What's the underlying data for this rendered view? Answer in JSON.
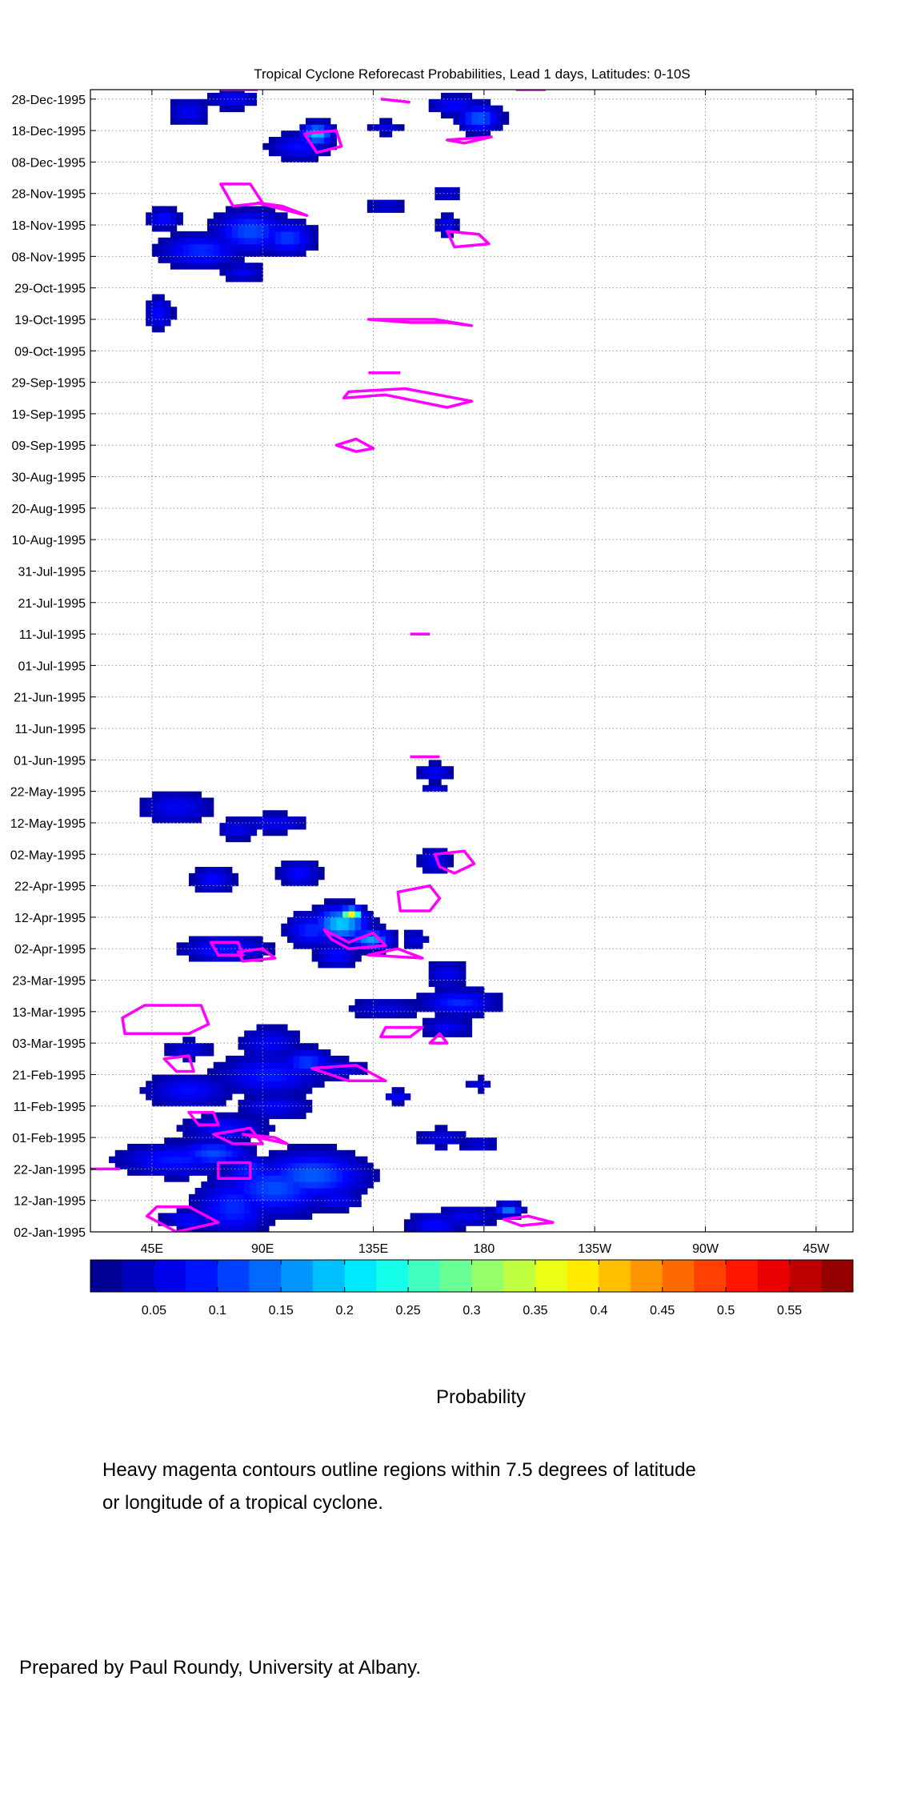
{
  "chart_data": {
    "type": "heatmap",
    "title": "Tropical Cyclone Reforecast Probabilities, Lead 1 days, Latitudes: 0-10S",
    "xlabel": "",
    "ylabel": "",
    "colorbar_label": "Probability",
    "x_ticks": [
      {
        "lon": 45,
        "label": "45E"
      },
      {
        "lon": 90,
        "label": "90E"
      },
      {
        "lon": 135,
        "label": "135E"
      },
      {
        "lon": 180,
        "label": "180"
      },
      {
        "lon": 225,
        "label": "135W"
      },
      {
        "lon": 270,
        "label": "90W"
      },
      {
        "lon": 315,
        "label": "45W"
      }
    ],
    "xlim": [
      20,
      330
    ],
    "y_ticks": [
      {
        "day": 0,
        "label": "02-Jan-1995"
      },
      {
        "day": 10,
        "label": "12-Jan-1995"
      },
      {
        "day": 20,
        "label": "22-Jan-1995"
      },
      {
        "day": 30,
        "label": "01-Feb-1995"
      },
      {
        "day": 40,
        "label": "11-Feb-1995"
      },
      {
        "day": 50,
        "label": "21-Feb-1995"
      },
      {
        "day": 60,
        "label": "03-Mar-1995"
      },
      {
        "day": 70,
        "label": "13-Mar-1995"
      },
      {
        "day": 80,
        "label": "23-Mar-1995"
      },
      {
        "day": 90,
        "label": "02-Apr-1995"
      },
      {
        "day": 100,
        "label": "12-Apr-1995"
      },
      {
        "day": 110,
        "label": "22-Apr-1995"
      },
      {
        "day": 120,
        "label": "02-May-1995"
      },
      {
        "day": 130,
        "label": "12-May-1995"
      },
      {
        "day": 140,
        "label": "22-May-1995"
      },
      {
        "day": 150,
        "label": "01-Jun-1995"
      },
      {
        "day": 160,
        "label": "11-Jun-1995"
      },
      {
        "day": 170,
        "label": "21-Jun-1995"
      },
      {
        "day": 180,
        "label": "01-Jul-1995"
      },
      {
        "day": 190,
        "label": "11-Jul-1995"
      },
      {
        "day": 200,
        "label": "21-Jul-1995"
      },
      {
        "day": 210,
        "label": "31-Jul-1995"
      },
      {
        "day": 220,
        "label": "10-Aug-1995"
      },
      {
        "day": 230,
        "label": "20-Aug-1995"
      },
      {
        "day": 240,
        "label": "30-Aug-1995"
      },
      {
        "day": 250,
        "label": "09-Sep-1995"
      },
      {
        "day": 260,
        "label": "19-Sep-1995"
      },
      {
        "day": 270,
        "label": "29-Sep-1995"
      },
      {
        "day": 280,
        "label": "09-Oct-1995"
      },
      {
        "day": 290,
        "label": "19-Oct-1995"
      },
      {
        "day": 300,
        "label": "29-Oct-1995"
      },
      {
        "day": 310,
        "label": "08-Nov-1995"
      },
      {
        "day": 320,
        "label": "18-Nov-1995"
      },
      {
        "day": 330,
        "label": "28-Nov-1995"
      },
      {
        "day": 340,
        "label": "08-Dec-1995"
      },
      {
        "day": 350,
        "label": "18-Dec-1995"
      },
      {
        "day": 360,
        "label": "28-Dec-1995"
      }
    ],
    "ylim": [
      0,
      363
    ],
    "colorbar": {
      "range": [
        0,
        0.6
      ],
      "ticks": [
        0.05,
        0.1,
        0.15,
        0.2,
        0.25,
        0.3,
        0.35,
        0.4,
        0.45,
        0.5,
        0.55
      ],
      "tick_labels": [
        "0.05",
        "0.1",
        "0.15",
        "0.2",
        "0.25",
        "0.3",
        "0.35",
        "0.4",
        "0.45",
        "0.5",
        "0.55"
      ],
      "colormap": "jet",
      "levels": 24
    },
    "grid": true,
    "probability_blobs": [
      {
        "lon": 60,
        "day": 4,
        "rl": 10,
        "rd": 3,
        "v": 0.08
      },
      {
        "lon": 78,
        "day": 8,
        "rl": 14,
        "rd": 9,
        "v": 0.1
      },
      {
        "lon": 95,
        "day": 14,
        "rl": 20,
        "rd": 8,
        "v": 0.12
      },
      {
        "lon": 110,
        "day": 18,
        "rl": 20,
        "rd": 7,
        "v": 0.13
      },
      {
        "lon": 120,
        "day": 10,
        "rl": 10,
        "rd": 3,
        "v": 0.07
      },
      {
        "lon": 55,
        "day": 23,
        "rl": 22,
        "rd": 5,
        "v": 0.09
      },
      {
        "lon": 70,
        "day": 25,
        "rl": 14,
        "rd": 4,
        "v": 0.12
      },
      {
        "lon": 85,
        "day": 20,
        "rl": 10,
        "rd": 4,
        "v": 0.1
      },
      {
        "lon": 160,
        "day": 2,
        "rl": 10,
        "rd": 4,
        "v": 0.08
      },
      {
        "lon": 173,
        "day": 5,
        "rl": 12,
        "rd": 3,
        "v": 0.07
      },
      {
        "lon": 190,
        "day": 7,
        "rl": 5,
        "rd": 2,
        "v": 0.15
      },
      {
        "lon": 163,
        "day": 30,
        "rl": 10,
        "rd": 3,
        "v": 0.06
      },
      {
        "lon": 178,
        "day": 28,
        "rl": 8,
        "rd": 2,
        "v": 0.06
      },
      {
        "lon": 75,
        "day": 33,
        "rl": 16,
        "rd": 4,
        "v": 0.08
      },
      {
        "lon": 95,
        "day": 40,
        "rl": 14,
        "rd": 4,
        "v": 0.07
      },
      {
        "lon": 60,
        "day": 45,
        "rl": 16,
        "rd": 5,
        "v": 0.08
      },
      {
        "lon": 93,
        "day": 50,
        "rl": 20,
        "rd": 6,
        "v": 0.09
      },
      {
        "lon": 108,
        "day": 54,
        "rl": 10,
        "rd": 4,
        "v": 0.11
      },
      {
        "lon": 120,
        "day": 52,
        "rl": 12,
        "rd": 3,
        "v": 0.07
      },
      {
        "lon": 93,
        "day": 60,
        "rl": 12,
        "rd": 5,
        "v": 0.07
      },
      {
        "lon": 60,
        "day": 58,
        "rl": 10,
        "rd": 3,
        "v": 0.06
      },
      {
        "lon": 145,
        "day": 43,
        "rl": 5,
        "rd": 2,
        "v": 0.08
      },
      {
        "lon": 178,
        "day": 47,
        "rl": 5,
        "rd": 2,
        "v": 0.06
      },
      {
        "lon": 165,
        "day": 65,
        "rl": 10,
        "rd": 3,
        "v": 0.07
      },
      {
        "lon": 170,
        "day": 73,
        "rl": 14,
        "rd": 4,
        "v": 0.1
      },
      {
        "lon": 140,
        "day": 71,
        "rl": 14,
        "rd": 3,
        "v": 0.06
      },
      {
        "lon": 75,
        "day": 90,
        "rl": 16,
        "rd": 4,
        "v": 0.09
      },
      {
        "lon": 110,
        "day": 96,
        "rl": 10,
        "rd": 5,
        "v": 0.1
      },
      {
        "lon": 122,
        "day": 98,
        "rl": 10,
        "rd": 5,
        "v": 0.2
      },
      {
        "lon": 126,
        "day": 101,
        "rl": 4,
        "rd": 2,
        "v": 0.38
      },
      {
        "lon": 134,
        "day": 93,
        "rl": 8,
        "rd": 3,
        "v": 0.17
      },
      {
        "lon": 120,
        "day": 88,
        "rl": 8,
        "rd": 4,
        "v": 0.08
      },
      {
        "lon": 165,
        "day": 82,
        "rl": 8,
        "rd": 4,
        "v": 0.07
      },
      {
        "lon": 152,
        "day": 93,
        "rl": 5,
        "rd": 3,
        "v": 0.06
      },
      {
        "lon": 70,
        "day": 112,
        "rl": 8,
        "rd": 4,
        "v": 0.08
      },
      {
        "lon": 105,
        "day": 114,
        "rl": 8,
        "rd": 4,
        "v": 0.08
      },
      {
        "lon": 160,
        "day": 118,
        "rl": 6,
        "rd": 4,
        "v": 0.07
      },
      {
        "lon": 55,
        "day": 135,
        "rl": 14,
        "rd": 5,
        "v": 0.07
      },
      {
        "lon": 95,
        "day": 130,
        "rl": 12,
        "rd": 3,
        "v": 0.07
      },
      {
        "lon": 80,
        "day": 128,
        "rl": 8,
        "rd": 3,
        "v": 0.07
      },
      {
        "lon": 160,
        "day": 146,
        "rl": 7,
        "rd": 3,
        "v": 0.07
      },
      {
        "lon": 160,
        "day": 141,
        "rl": 5,
        "rd": 1,
        "v": 0.06
      },
      {
        "lon": 48,
        "day": 292,
        "rl": 5,
        "rd": 5,
        "v": 0.08
      },
      {
        "lon": 65,
        "day": 312,
        "rl": 16,
        "rd": 5,
        "v": 0.1
      },
      {
        "lon": 50,
        "day": 322,
        "rl": 6,
        "rd": 3,
        "v": 0.09
      },
      {
        "lon": 85,
        "day": 318,
        "rl": 14,
        "rd": 6,
        "v": 0.12
      },
      {
        "lon": 100,
        "day": 316,
        "rl": 10,
        "rd": 5,
        "v": 0.11
      },
      {
        "lon": 82,
        "day": 305,
        "rl": 8,
        "rd": 3,
        "v": 0.07
      },
      {
        "lon": 140,
        "day": 326,
        "rl": 8,
        "rd": 2,
        "v": 0.06
      },
      {
        "lon": 165,
        "day": 320,
        "rl": 4,
        "rd": 4,
        "v": 0.07
      },
      {
        "lon": 60,
        "day": 356,
        "rl": 8,
        "rd": 4,
        "v": 0.07
      },
      {
        "lon": 78,
        "day": 360,
        "rl": 10,
        "rd": 3,
        "v": 0.07
      },
      {
        "lon": 105,
        "day": 345,
        "rl": 12,
        "rd": 4,
        "v": 0.08
      },
      {
        "lon": 112,
        "day": 349,
        "rl": 6,
        "rd": 3,
        "v": 0.2
      },
      {
        "lon": 168,
        "day": 358,
        "rl": 10,
        "rd": 3,
        "v": 0.08
      },
      {
        "lon": 178,
        "day": 354,
        "rl": 8,
        "rd": 4,
        "v": 0.13
      },
      {
        "lon": 140,
        "day": 351,
        "rl": 6,
        "rd": 2,
        "v": 0.06
      },
      {
        "lon": 165,
        "day": 330,
        "rl": 6,
        "rd": 2,
        "v": 0.06
      }
    ],
    "cyclone_contours": [
      [
        [
          33,
          68
        ],
        [
          42,
          72
        ],
        [
          65,
          72
        ],
        [
          68,
          66
        ],
        [
          60,
          63
        ],
        [
          34,
          63
        ]
      ],
      [
        [
          50,
          55
        ],
        [
          60,
          56
        ],
        [
          62,
          51
        ],
        [
          55,
          51
        ]
      ],
      [
        [
          60,
          38
        ],
        [
          70,
          38
        ],
        [
          72,
          34
        ],
        [
          64,
          34
        ]
      ],
      [
        [
          110,
          52
        ],
        [
          125,
          48
        ],
        [
          140,
          48
        ],
        [
          128,
          53
        ]
      ],
      [
        [
          140,
          65
        ],
        [
          155,
          65
        ],
        [
          150,
          62
        ],
        [
          138,
          62
        ]
      ],
      [
        [
          158,
          60
        ],
        [
          165,
          60
        ],
        [
          162,
          63
        ]
      ],
      [
        [
          70,
          31
        ],
        [
          85,
          33
        ],
        [
          90,
          28
        ],
        [
          78,
          28
        ]
      ],
      [
        [
          82,
          31
        ],
        [
          95,
          30
        ],
        [
          100,
          28
        ]
      ],
      [
        [
          72,
          22
        ],
        [
          85,
          22
        ],
        [
          85,
          17
        ],
        [
          72,
          17
        ]
      ],
      [
        [
          43,
          5
        ],
        [
          55,
          0
        ],
        [
          72,
          3
        ],
        [
          60,
          8
        ],
        [
          47,
          8
        ]
      ],
      [
        [
          188,
          4
        ],
        [
          198,
          5
        ],
        [
          208,
          3
        ],
        [
          195,
          2
        ]
      ],
      [
        [
          10,
          20
        ],
        [
          32,
          20
        ]
      ],
      [
        [
          69,
          92
        ],
        [
          80,
          92
        ],
        [
          82,
          88
        ],
        [
          72,
          88
        ]
      ],
      [
        [
          80,
          89
        ],
        [
          90,
          90
        ],
        [
          95,
          87
        ],
        [
          82,
          86
        ]
      ],
      [
        [
          115,
          96
        ],
        [
          125,
          92
        ],
        [
          135,
          95
        ],
        [
          140,
          91
        ],
        [
          125,
          90
        ],
        [
          118,
          93
        ]
      ],
      [
        [
          133,
          88
        ],
        [
          145,
          90
        ],
        [
          155,
          87
        ]
      ],
      [
        [
          145,
          108
        ],
        [
          158,
          110
        ],
        [
          162,
          106
        ],
        [
          158,
          102
        ],
        [
          146,
          102
        ]
      ],
      [
        [
          160,
          120
        ],
        [
          172,
          121
        ],
        [
          176,
          117
        ],
        [
          168,
          114
        ],
        [
          162,
          116
        ]
      ],
      [
        [
          150,
          151
        ],
        [
          162,
          151
        ]
      ],
      [
        [
          150,
          190
        ],
        [
          158,
          190
        ]
      ],
      [
        [
          120,
          250
        ],
        [
          128,
          252
        ],
        [
          135,
          249
        ],
        [
          128,
          248
        ]
      ],
      [
        [
          123,
          265
        ],
        [
          140,
          266
        ],
        [
          165,
          262
        ],
        [
          175,
          264
        ],
        [
          148,
          268
        ],
        [
          125,
          267
        ]
      ],
      [
        [
          133,
          273
        ],
        [
          146,
          273
        ]
      ],
      [
        [
          133,
          290
        ],
        [
          150,
          289
        ],
        [
          165,
          289
        ],
        [
          175,
          288
        ],
        [
          160,
          290
        ]
      ],
      [
        [
          73,
          333
        ],
        [
          85,
          333
        ],
        [
          90,
          327
        ],
        [
          78,
          326
        ]
      ],
      [
        [
          88,
          327
        ],
        [
          108,
          323
        ],
        [
          98,
          326
        ]
      ],
      [
        [
          165,
          318
        ],
        [
          178,
          317
        ],
        [
          182,
          314
        ],
        [
          168,
          313
        ]
      ],
      [
        [
          107,
          349
        ],
        [
          120,
          350
        ],
        [
          122,
          345
        ],
        [
          112,
          343
        ]
      ],
      [
        [
          165,
          347
        ],
        [
          183,
          348
        ],
        [
          172,
          346
        ]
      ],
      [
        [
          138,
          360
        ],
        [
          150,
          359
        ]
      ],
      [
        [
          73,
          363
        ],
        [
          88,
          363
        ]
      ],
      [
        [
          193,
          363
        ],
        [
          205,
          363
        ]
      ]
    ]
  },
  "caption": {
    "line1": "Heavy magenta contours outline regions within 7.5 degrees of latitude",
    "line2": "or longitude of a tropical cyclone."
  },
  "credit": "Prepared by Paul Roundy, University at Albany."
}
